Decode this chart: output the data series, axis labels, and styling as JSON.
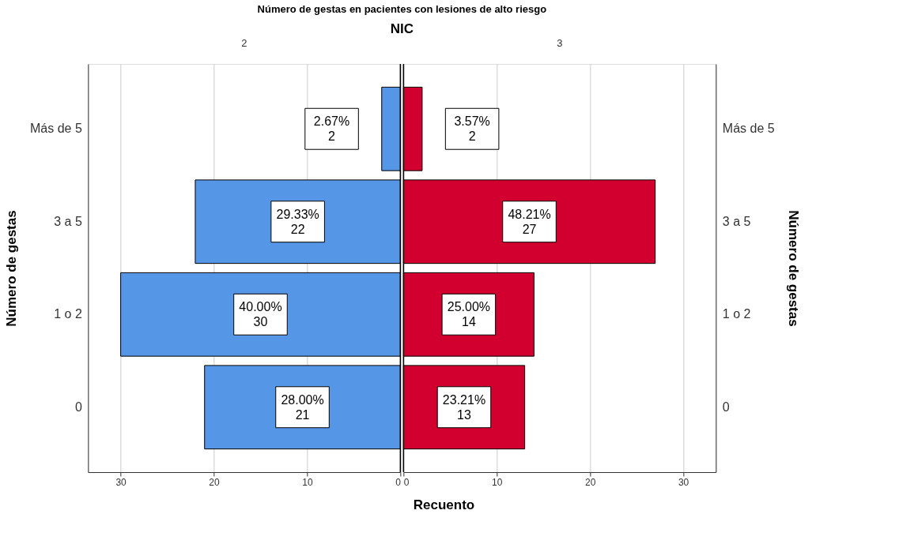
{
  "chart_data": [
    {
      "type": "bar",
      "orientation": "horizontal",
      "title": "Número de gestas en pacientes con lesiones de alto riesgo",
      "subtitle": "NIC",
      "x2label": "2",
      "xlabel": "Recuento",
      "ylabel": "Número de gestas",
      "categories": [
        "Más de 5",
        "3 a 5",
        "1 o 2",
        "0"
      ],
      "series": [
        {
          "color": "#5596e6",
          "values": [
            2,
            22,
            30,
            21
          ],
          "value_labels": [
            "2.67%\n2",
            "29.33%\n22",
            "40.00%\n30",
            "28.00%\n21"
          ]
        }
      ],
      "xlim": [
        33.5,
        0
      ],
      "xticks": [
        0,
        10,
        20,
        30
      ],
      "grid": "x",
      "legend": false
    },
    {
      "type": "bar",
      "orientation": "horizontal",
      "x2label": "3",
      "ylabel": "Número de gestas",
      "categories": [
        "Más de 5",
        "3 a 5",
        "1 o 2",
        "0"
      ],
      "series": [
        {
          "color": "#d2002e",
          "values": [
            2,
            27,
            14,
            13
          ],
          "value_labels": [
            "3.57%\n2",
            "48.21%\n27",
            "25.00%\n14",
            "23.21%\n13"
          ]
        }
      ],
      "xlim": [
        0,
        33.5
      ],
      "xticks": [
        0,
        10,
        20,
        30
      ],
      "grid": "x",
      "legend": false
    }
  ]
}
